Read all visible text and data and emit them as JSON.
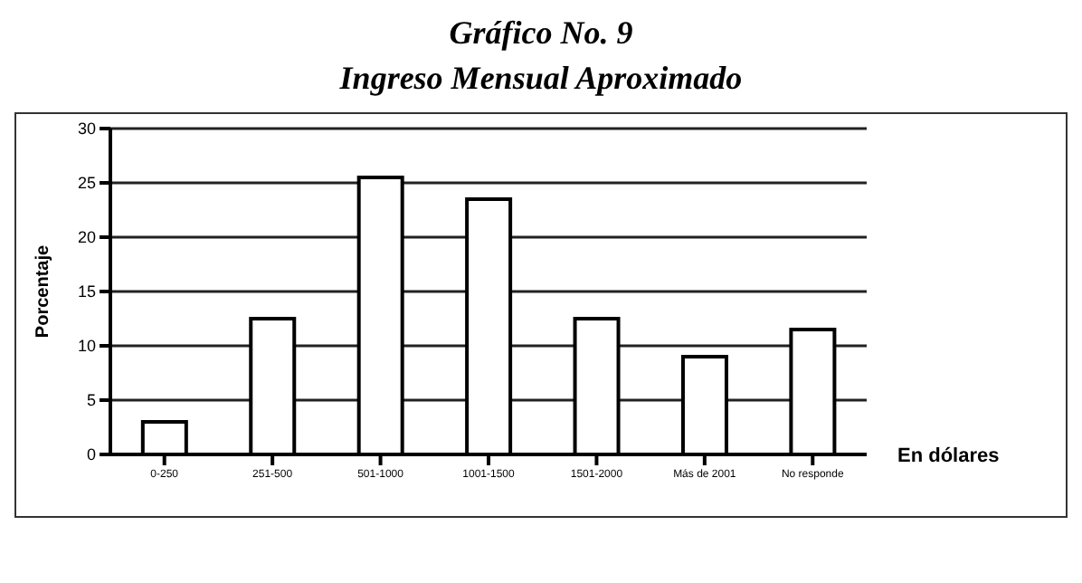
{
  "chart_data": {
    "type": "bar",
    "title": "Gráfico No. 9",
    "subtitle": "Ingreso Mensual Aproximado",
    "xlabel": "En dólares",
    "ylabel": "Porcentaje",
    "categories": [
      "0-250",
      "251-500",
      "501-1000",
      "1001-1500",
      "1501-2000",
      "Más de 2001",
      "No responde"
    ],
    "values": [
      3,
      12.5,
      25.5,
      23.5,
      12.5,
      9,
      11.5
    ],
    "color": "#ffffff",
    "ylim": [
      0,
      30
    ],
    "yticks": [
      0,
      5,
      10,
      15,
      20,
      25,
      30
    ],
    "grid": "y"
  }
}
